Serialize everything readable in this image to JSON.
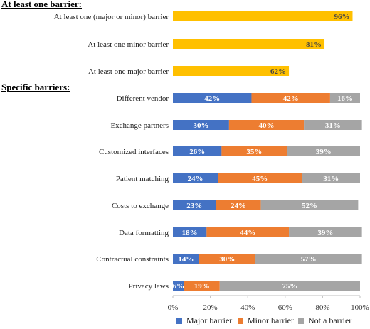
{
  "chart_data": {
    "type": "bar",
    "orientation": "horizontal",
    "stacked": true,
    "xlim": [
      0,
      100
    ],
    "x_ticks": [
      "0%",
      "20%",
      "40%",
      "60%",
      "80%",
      "100%"
    ],
    "grid": false,
    "legend_position": "bottom",
    "sections": [
      {
        "heading": "At least one barrier:",
        "categories": [
          "At least one (major or minor) barrier",
          "At least one minor barrier",
          "At least one major barrier"
        ],
        "values": [
          96,
          81,
          62
        ],
        "labels": [
          "96%",
          "81%",
          "62%"
        ],
        "color": "#FFC000"
      },
      {
        "heading": "Specific barriers:",
        "categories": [
          "Different vendor",
          "Exchange partners",
          "Customized interfaces",
          "Patient matching",
          "Costs to exchange",
          "Data formatting",
          "Contractual constraints",
          "Privacy laws"
        ],
        "series": [
          {
            "name": "Major barrier",
            "color": "#4472C4",
            "values": [
              42,
              30,
              26,
              24,
              23,
              18,
              14,
              6
            ],
            "labels": [
              "42%",
              "30%",
              "26%",
              "24%",
              "23%",
              "18%",
              "14%",
              "6%"
            ]
          },
          {
            "name": "Minor barrier",
            "color": "#ED7D31",
            "values": [
              42,
              40,
              35,
              45,
              24,
              44,
              30,
              19
            ],
            "labels": [
              "42%",
              "40%",
              "35%",
              "45%",
              "24%",
              "44%",
              "30%",
              "19%"
            ]
          },
          {
            "name": "Not a barrier",
            "color": "#A5A5A5",
            "values": [
              16,
              31,
              39,
              31,
              52,
              39,
              57,
              75
            ],
            "labels": [
              "16%",
              "31%",
              "39%",
              "31%",
              "52%",
              "39%",
              "57%",
              "75%"
            ]
          }
        ]
      }
    ]
  }
}
